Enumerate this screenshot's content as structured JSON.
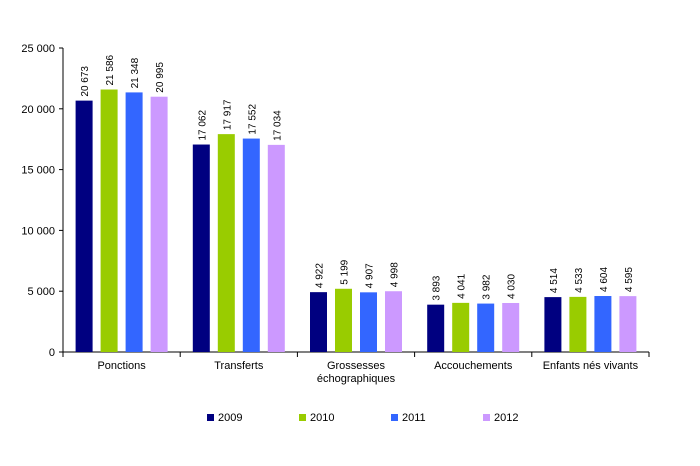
{
  "chart_data": {
    "type": "bar",
    "categories": [
      [
        "Ponctions"
      ],
      [
        "Transferts"
      ],
      [
        "Grossesses",
        "échographiques"
      ],
      [
        "Accouchements"
      ],
      [
        "Enfants nés vivants"
      ]
    ],
    "series": [
      {
        "name": "2009",
        "color": "#000080",
        "values": [
          20673,
          17062,
          4922,
          3893,
          4514
        ],
        "labels": [
          "20 673",
          "17 062",
          "4 922",
          "3 893",
          "4 514"
        ]
      },
      {
        "name": "2010",
        "color": "#99CC00",
        "values": [
          21586,
          17917,
          5199,
          4041,
          4533
        ],
        "labels": [
          "21 586",
          "17 917",
          "5 199",
          "4 041",
          "4 533"
        ]
      },
      {
        "name": "2011",
        "color": "#3366FF",
        "values": [
          21348,
          17552,
          4907,
          3982,
          4604
        ],
        "labels": [
          "21 348",
          "17 552",
          "4 907",
          "3 982",
          "4 604"
        ]
      },
      {
        "name": "2012",
        "color": "#CC99FF",
        "values": [
          20995,
          17034,
          4998,
          4030,
          4595
        ],
        "labels": [
          "20 995",
          "17 034",
          "4 998",
          "4 030",
          "4 595"
        ]
      }
    ],
    "yticks": [
      {
        "value": 0,
        "label": "0"
      },
      {
        "value": 5000,
        "label": "5 000"
      },
      {
        "value": 10000,
        "label": "10 000"
      },
      {
        "value": 15000,
        "label": "15 000"
      },
      {
        "value": 20000,
        "label": "20 000"
      },
      {
        "value": 25000,
        "label": "25 000"
      }
    ],
    "ylim": [
      0,
      25000
    ],
    "grid": false,
    "legend_position": "bottom"
  }
}
